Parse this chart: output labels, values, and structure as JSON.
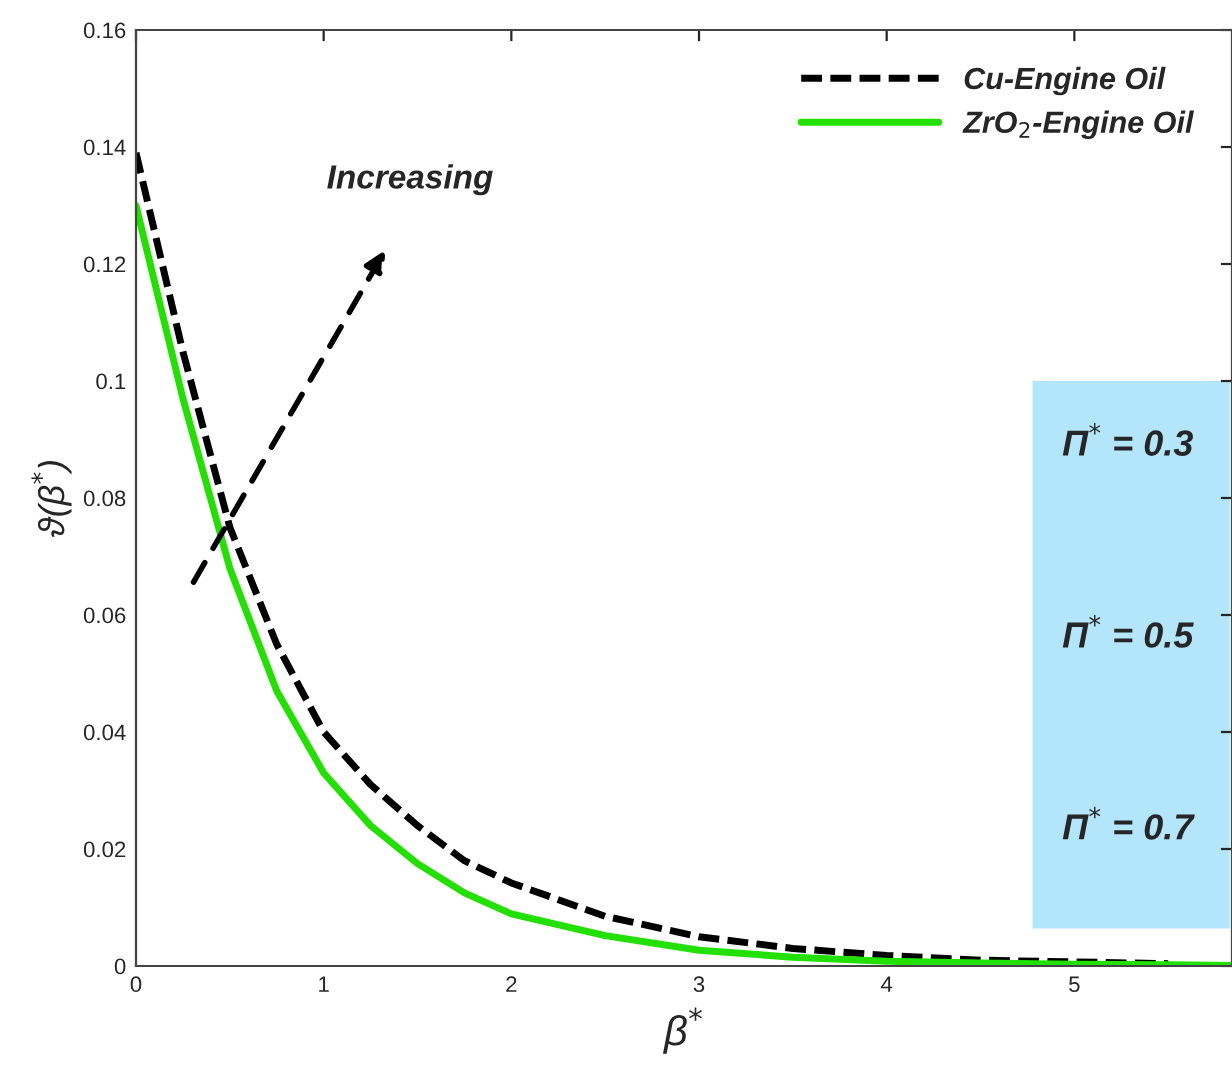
{
  "chart_data": {
    "type": "line",
    "xlabel": "β$^{*}$",
    "ylabel": "ϑ(β$^{*}$)",
    "series": [
      {
        "name": "Cu-Engine Oil",
        "color": "#000000",
        "line_style": "dashed",
        "x": [
          0,
          0.25,
          0.5,
          0.75,
          1,
          1.25,
          1.5,
          1.75,
          2,
          2.5,
          3,
          3.5,
          4,
          4.5,
          5,
          5.5
        ],
        "values": [
          0.139,
          0.105,
          0.075,
          0.055,
          0.04,
          0.031,
          0.024,
          0.018,
          0.0142,
          0.0085,
          0.005,
          0.003,
          0.0018,
          0.001,
          0.0007,
          0.0004
        ]
      },
      {
        "name": "ZrO$_{2}$-Engine Oil",
        "color": "#22e000",
        "line_style": "solid",
        "x": [
          0,
          0.25,
          0.5,
          0.75,
          1,
          1.25,
          1.5,
          1.75,
          2,
          2.5,
          3,
          3.5,
          4,
          4.5,
          5,
          5.5,
          5.84
        ],
        "values": [
          0.13,
          0.097,
          0.068,
          0.047,
          0.033,
          0.024,
          0.0175,
          0.0125,
          0.0089,
          0.0052,
          0.0027,
          0.0015,
          0.0008,
          0.0005,
          0.0003,
          0.0002,
          0.0001
        ]
      }
    ],
    "annotations": [
      "Increasing",
      "Π$^{*}$ = 0.3",
      "Π$^{*}$ = 0.5",
      "Π$^{*}$ = 0.7"
    ],
    "xlim": [
      0,
      5.84
    ],
    "xticks": [
      0,
      1,
      2,
      3,
      4,
      5
    ],
    "ylim": [
      0,
      0.16
    ],
    "yticks": [
      0,
      0.02,
      0.04,
      0.06,
      0.08,
      0.1,
      0.12,
      0.14,
      0.16
    ],
    "legend": "top right",
    "grid": false
  }
}
